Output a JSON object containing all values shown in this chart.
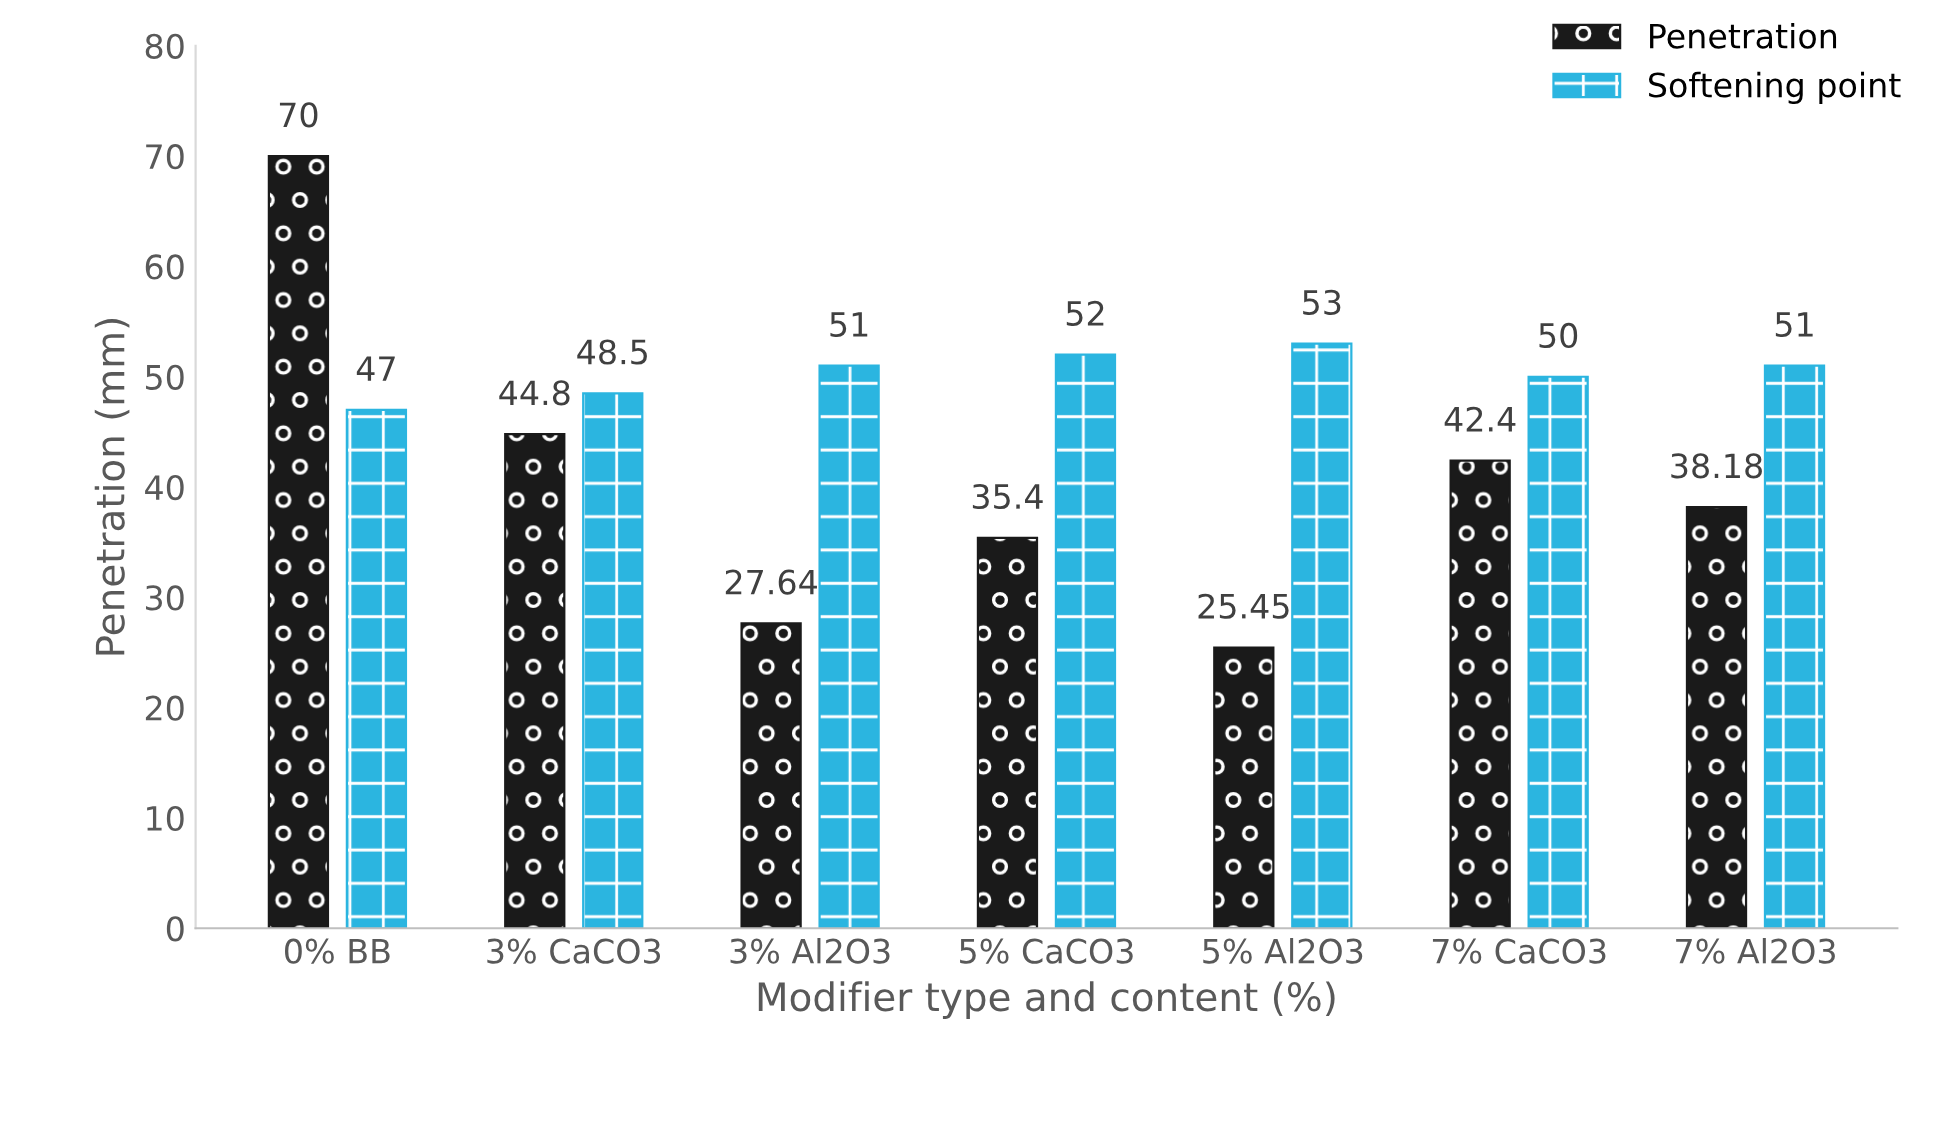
{
  "chart_data": {
    "type": "bar",
    "xlabel": "Modifier type and content (%)",
    "ylabel": "Penetration (mm)",
    "categories": [
      "0% BB",
      "3% CaCO3",
      "3% Al2O3",
      "5% CaCO3",
      "5% Al2O3",
      "7% CaCO3",
      "7% Al2O3"
    ],
    "series": [
      {
        "name": "Penetration",
        "color": "#1a1a1a",
        "values": [
          70,
          44.8,
          27.64,
          35.4,
          25.45,
          42.4,
          38.18
        ]
      },
      {
        "name": "Softening point",
        "color": "#2bb5e0",
        "values": [
          47,
          48.5,
          51,
          52,
          53,
          50,
          51
        ]
      }
    ],
    "ylim": [
      0,
      80
    ],
    "yticks": [
      0,
      10,
      20,
      30,
      40,
      50,
      60,
      70,
      80
    ],
    "data_labels": true,
    "legend": "top right",
    "grid": false
  }
}
